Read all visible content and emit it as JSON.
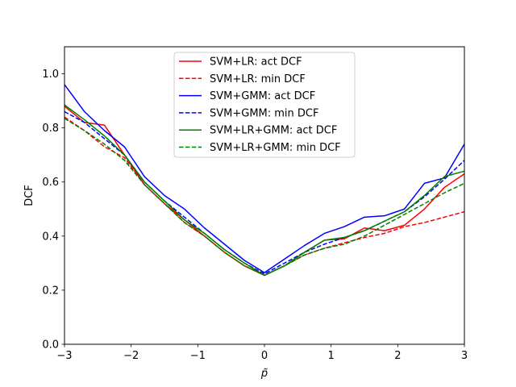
{
  "chart_data": {
    "type": "line",
    "title": "",
    "xlabel": "p̃",
    "ylabel": "DCF",
    "xlim": [
      -3,
      3
    ],
    "ylim": [
      0.0,
      1.1
    ],
    "x_ticks": [
      -3,
      -2,
      -1,
      0,
      1,
      2,
      3
    ],
    "x_tick_labels": [
      "−3",
      "−2",
      "−1",
      "0",
      "1",
      "2",
      "3"
    ],
    "y_ticks": [
      0.0,
      0.2,
      0.4,
      0.6,
      0.8,
      1.0
    ],
    "y_tick_labels": [
      "0.0",
      "0.2",
      "0.4",
      "0.6",
      "0.8",
      "1.0"
    ],
    "grid": false,
    "legend_position": "upper-center",
    "series": [
      {
        "name": "SVM+LR: act DCF",
        "color": "#ff0000",
        "dash": "solid",
        "x": [
          -3,
          -2.7,
          -2.4,
          -2.1,
          -1.8,
          -1.5,
          -1.2,
          -0.9,
          -0.6,
          -0.3,
          0,
          0.3,
          0.6,
          0.9,
          1.2,
          1.5,
          1.8,
          2.1,
          2.4,
          2.7,
          3
        ],
        "y": [
          0.88,
          0.82,
          0.81,
          0.7,
          0.59,
          0.52,
          0.46,
          0.4,
          0.34,
          0.29,
          0.255,
          0.29,
          0.34,
          0.385,
          0.39,
          0.43,
          0.42,
          0.44,
          0.5,
          0.58,
          0.63
        ]
      },
      {
        "name": "SVM+LR: min DCF",
        "color": "#ff0000",
        "dash": "dashed",
        "x": [
          -3,
          -2.7,
          -2.4,
          -2.1,
          -1.8,
          -1.5,
          -1.2,
          -0.9,
          -0.6,
          -0.3,
          0,
          0.3,
          0.6,
          0.9,
          1.2,
          1.5,
          1.8,
          2.1,
          2.4,
          2.7,
          3
        ],
        "y": [
          0.84,
          0.79,
          0.73,
          0.69,
          0.59,
          0.52,
          0.45,
          0.4,
          0.34,
          0.29,
          0.255,
          0.29,
          0.33,
          0.355,
          0.375,
          0.395,
          0.41,
          0.435,
          0.45,
          0.47,
          0.49
        ]
      },
      {
        "name": "SVM+GMM: act DCF",
        "color": "#0000ff",
        "dash": "solid",
        "x": [
          -3,
          -2.7,
          -2.4,
          -2.1,
          -1.8,
          -1.5,
          -1.2,
          -0.9,
          -0.6,
          -0.3,
          0,
          0.3,
          0.6,
          0.9,
          1.2,
          1.5,
          1.8,
          2.1,
          2.4,
          2.7,
          3
        ],
        "y": [
          0.96,
          0.86,
          0.79,
          0.73,
          0.62,
          0.55,
          0.5,
          0.43,
          0.37,
          0.31,
          0.265,
          0.315,
          0.365,
          0.41,
          0.435,
          0.47,
          0.475,
          0.5,
          0.595,
          0.615,
          0.74
        ]
      },
      {
        "name": "SVM+GMM: min DCF",
        "color": "#0000ff",
        "dash": "dashed",
        "x": [
          -3,
          -2.7,
          -2.4,
          -2.1,
          -1.8,
          -1.5,
          -1.2,
          -0.9,
          -0.6,
          -0.3,
          0,
          0.3,
          0.6,
          0.9,
          1.2,
          1.5,
          1.8,
          2.1,
          2.4,
          2.7,
          3
        ],
        "y": [
          0.86,
          0.82,
          0.76,
          0.7,
          0.6,
          0.53,
          0.47,
          0.41,
          0.35,
          0.3,
          0.26,
          0.3,
          0.34,
          0.37,
          0.395,
          0.42,
          0.455,
          0.49,
          0.545,
          0.61,
          0.68
        ]
      },
      {
        "name": "SVM+LR+GMM: act DCF",
        "color": "#008000",
        "dash": "solid",
        "x": [
          -3,
          -2.7,
          -2.4,
          -2.1,
          -1.8,
          -1.5,
          -1.2,
          -0.9,
          -0.6,
          -0.3,
          0,
          0.3,
          0.6,
          0.9,
          1.2,
          1.5,
          1.8,
          2.1,
          2.4,
          2.7,
          3
        ],
        "y": [
          0.885,
          0.83,
          0.77,
          0.7,
          0.6,
          0.53,
          0.46,
          0.41,
          0.35,
          0.3,
          0.255,
          0.29,
          0.34,
          0.385,
          0.395,
          0.42,
          0.455,
          0.49,
          0.55,
          0.62,
          0.64
        ]
      },
      {
        "name": "SVM+LR+GMM: min DCF",
        "color": "#008000",
        "dash": "dashed",
        "x": [
          -3,
          -2.7,
          -2.4,
          -2.1,
          -1.8,
          -1.5,
          -1.2,
          -0.9,
          -0.6,
          -0.3,
          0,
          0.3,
          0.6,
          0.9,
          1.2,
          1.5,
          1.8,
          2.1,
          2.4,
          2.7,
          3
        ],
        "y": [
          0.835,
          0.79,
          0.74,
          0.68,
          0.59,
          0.52,
          0.45,
          0.4,
          0.34,
          0.29,
          0.255,
          0.29,
          0.33,
          0.355,
          0.37,
          0.4,
          0.44,
          0.48,
          0.52,
          0.56,
          0.595
        ]
      }
    ]
  }
}
